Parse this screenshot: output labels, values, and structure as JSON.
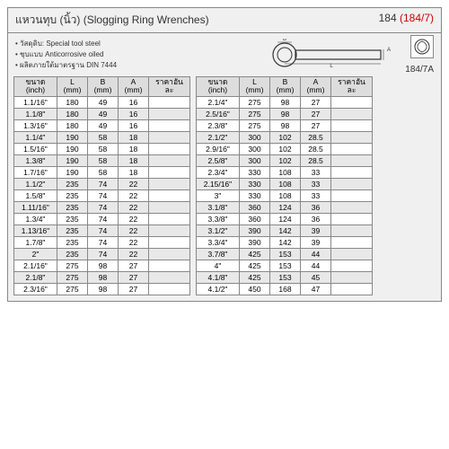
{
  "header": {
    "title_thai": "แหวนทุบ (นิ้ว)",
    "title_en": "(Slogging Ring Wrenches)",
    "code_black": "184",
    "code_red": "(184/7)"
  },
  "bullets": [
    "วัสดุดิบ: Special tool steel",
    "ชุบแบบ Anticorrosive oiled",
    "ผลิตภายใต้มาตรฐาน DIN 7444"
  ],
  "sublabel": "184/7A",
  "columns": [
    {
      "l1": "ขนาด",
      "l2": "(inch)"
    },
    {
      "l1": "L",
      "l2": "(mm)"
    },
    {
      "l1": "B",
      "l2": "(mm)"
    },
    {
      "l1": "A",
      "l2": "(mm)"
    },
    {
      "l1": "ราคาอันละ",
      "l2": ""
    }
  ],
  "table1": [
    [
      "1.1/16\"",
      "180",
      "49",
      "16",
      ""
    ],
    [
      "1.1/8\"",
      "180",
      "49",
      "16",
      ""
    ],
    [
      "1.3/16\"",
      "180",
      "49",
      "16",
      ""
    ],
    [
      "1.1/4\"",
      "190",
      "58",
      "18",
      ""
    ],
    [
      "1.5/16\"",
      "190",
      "58",
      "18",
      ""
    ],
    [
      "1.3/8\"",
      "190",
      "58",
      "18",
      ""
    ],
    [
      "1.7/16\"",
      "190",
      "58",
      "18",
      ""
    ],
    [
      "1.1/2\"",
      "235",
      "74",
      "22",
      ""
    ],
    [
      "1.5/8\"",
      "235",
      "74",
      "22",
      ""
    ],
    [
      "1.11/16\"",
      "235",
      "74",
      "22",
      ""
    ],
    [
      "1.3/4\"",
      "235",
      "74",
      "22",
      ""
    ],
    [
      "1.13/16\"",
      "235",
      "74",
      "22",
      ""
    ],
    [
      "1.7/8\"",
      "235",
      "74",
      "22",
      ""
    ],
    [
      "2\"",
      "235",
      "74",
      "22",
      ""
    ],
    [
      "2.1/16\"",
      "275",
      "98",
      "27",
      ""
    ],
    [
      "2.1/8\"",
      "275",
      "98",
      "27",
      ""
    ],
    [
      "2.3/16\"",
      "275",
      "98",
      "27",
      ""
    ]
  ],
  "table2": [
    [
      "2.1/4\"",
      "275",
      "98",
      "27",
      ""
    ],
    [
      "2.5/16\"",
      "275",
      "98",
      "27",
      ""
    ],
    [
      "2.3/8\"",
      "275",
      "98",
      "27",
      ""
    ],
    [
      "2.1/2\"",
      "300",
      "102",
      "28.5",
      ""
    ],
    [
      "2.9/16\"",
      "300",
      "102",
      "28.5",
      ""
    ],
    [
      "2.5/8\"",
      "300",
      "102",
      "28.5",
      ""
    ],
    [
      "2.3/4\"",
      "330",
      "108",
      "33",
      ""
    ],
    [
      "2.15/16\"",
      "330",
      "108",
      "33",
      ""
    ],
    [
      "3\"",
      "330",
      "108",
      "33",
      ""
    ],
    [
      "3.1/8\"",
      "360",
      "124",
      "36",
      ""
    ],
    [
      "3.3/8\"",
      "360",
      "124",
      "36",
      ""
    ],
    [
      "3.1/2\"",
      "390",
      "142",
      "39",
      ""
    ],
    [
      "3.3/4\"",
      "390",
      "142",
      "39",
      ""
    ],
    [
      "3.7/8\"",
      "425",
      "153",
      "44",
      ""
    ],
    [
      "4\"",
      "425",
      "153",
      "44",
      ""
    ],
    [
      "4.1/8\"",
      "425",
      "153",
      "45",
      ""
    ],
    [
      "4.1/2\"",
      "450",
      "168",
      "47",
      ""
    ]
  ],
  "diagram_labels": {
    "A": "A",
    "B": "B",
    "L": "L"
  }
}
